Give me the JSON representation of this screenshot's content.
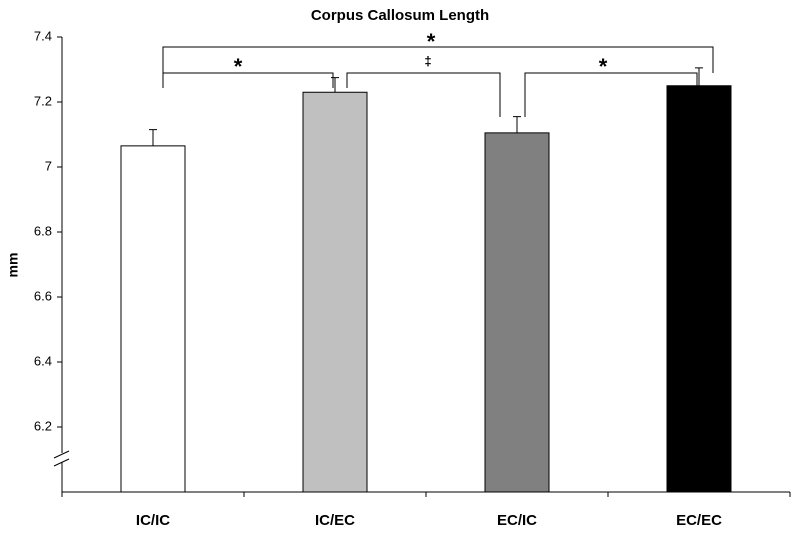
{
  "chart_data": {
    "type": "bar",
    "title": "Corpus Callosum Length",
    "y_label": "mm",
    "categories": [
      "IC/IC",
      "IC/EC",
      "EC/IC",
      "EC/EC"
    ],
    "values": [
      7.065,
      7.23,
      7.105,
      7.25
    ],
    "errors": [
      0.05,
      0.045,
      0.05,
      0.055
    ],
    "colors": [
      "#ffffff",
      "#c0c0c0",
      "#808080",
      "#000000"
    ],
    "ylim": [
      6.0,
      7.4
    ],
    "yticks": [
      6.2,
      6.4,
      6.6,
      6.8,
      7,
      7.2,
      7.4
    ],
    "annotations": [
      "*",
      "*",
      "‡",
      "*"
    ]
  }
}
